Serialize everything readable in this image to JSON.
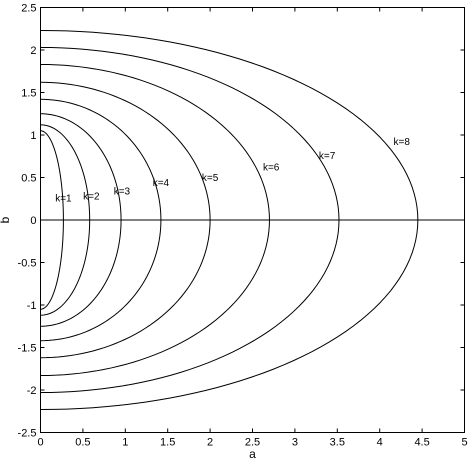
{
  "chart_data": {
    "type": "line",
    "title": "",
    "xlabel": "a",
    "ylabel": "b",
    "xlim": [
      0,
      5
    ],
    "ylim": [
      -2.5,
      2.5
    ],
    "xticks": [
      "0",
      "0.5",
      "1",
      "1.5",
      "2",
      "2.5",
      "3",
      "3.5",
      "4",
      "4.5",
      "5"
    ],
    "yticks": [
      "2.5",
      "2",
      "1.5",
      "1",
      "0.5",
      "0",
      "-0.5",
      "-1",
      "-1.5",
      "-2",
      "-2.5"
    ],
    "grid": false,
    "legend": "none",
    "reference_line": {
      "y": 0
    },
    "series": [
      {
        "name": "k=1",
        "a_max": 0.27,
        "b_max": 1.05,
        "label_at": [
          0.27,
          0.22
        ]
      },
      {
        "name": "k=2",
        "a_max": 0.58,
        "b_max": 1.12,
        "label_at": [
          0.6,
          0.24
        ]
      },
      {
        "name": "k=3",
        "a_max": 0.95,
        "b_max": 1.25,
        "label_at": [
          0.96,
          0.3
        ]
      },
      {
        "name": "k=4",
        "a_max": 1.42,
        "b_max": 1.42,
        "label_at": [
          1.42,
          0.4
        ]
      },
      {
        "name": "k=5",
        "a_max": 2.0,
        "b_max": 1.62,
        "label_at": [
          2.0,
          0.46
        ]
      },
      {
        "name": "k=6",
        "a_max": 2.7,
        "b_max": 1.83,
        "label_at": [
          2.72,
          0.58
        ]
      },
      {
        "name": "k=7",
        "a_max": 3.52,
        "b_max": 2.03,
        "label_at": [
          3.38,
          0.72
        ]
      },
      {
        "name": "k=8",
        "a_max": 4.45,
        "b_max": 2.23,
        "label_at": [
          4.26,
          0.88
        ]
      }
    ]
  }
}
